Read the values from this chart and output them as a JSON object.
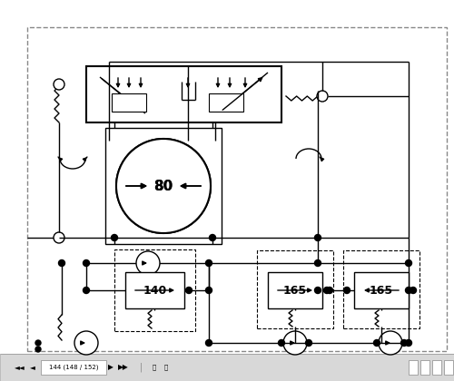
{
  "bg_color": "#ffffff",
  "line_color": "#000000",
  "figsize": [
    5.0,
    4.2
  ],
  "dpi": 100,
  "status_bar_text": "144 (148 / 152)",
  "motor_label": "80",
  "valve_140_label": "140",
  "valve_165_label": "165"
}
